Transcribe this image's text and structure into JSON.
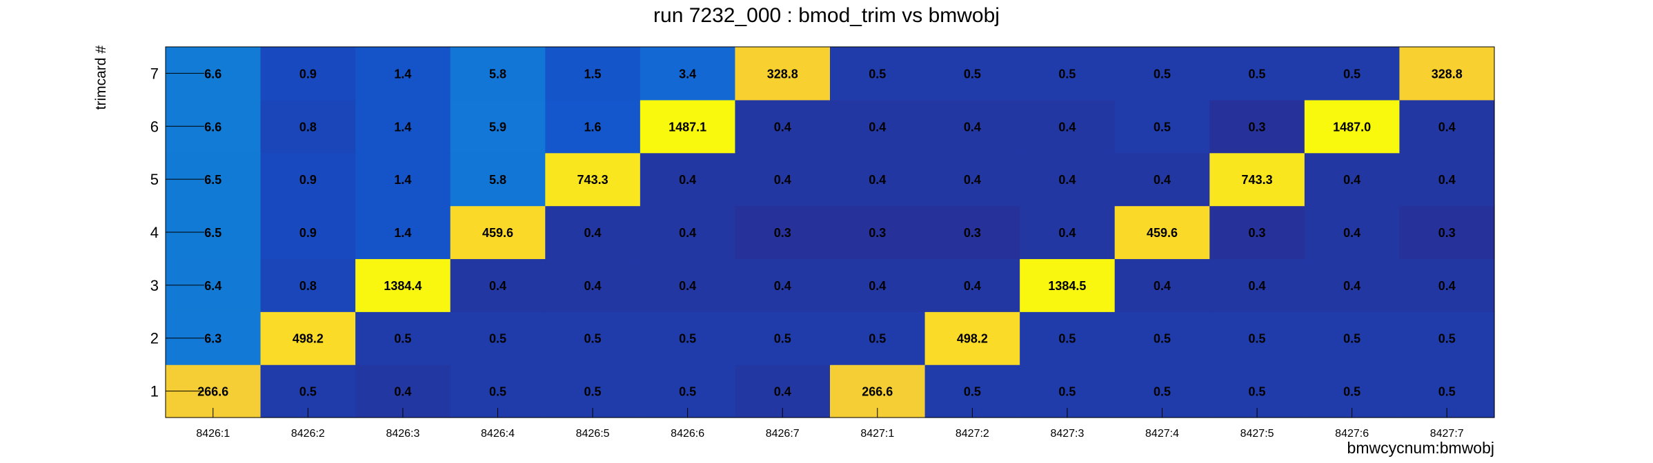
{
  "chart_data": {
    "type": "heatmap",
    "title": "run 7232_000 : bmod_trim vs bmwobj",
    "xlabel": "bmwcycnum:bmwobj",
    "ylabel": "trimcard #",
    "x_categories": [
      "8426:1",
      "8426:2",
      "8426:3",
      "8426:4",
      "8426:5",
      "8426:6",
      "8426:7",
      "8427:1",
      "8427:2",
      "8427:3",
      "8427:4",
      "8427:5",
      "8427:6",
      "8427:7"
    ],
    "y_categories": [
      "1",
      "2",
      "3",
      "4",
      "5",
      "6",
      "7"
    ],
    "values": [
      [
        266.6,
        0.5,
        0.4,
        0.5,
        0.5,
        0.5,
        0.4,
        266.6,
        0.5,
        0.5,
        0.5,
        0.5,
        0.5,
        0.5
      ],
      [
        6.3,
        498.2,
        0.5,
        0.5,
        0.5,
        0.5,
        0.5,
        0.5,
        498.2,
        0.5,
        0.5,
        0.5,
        0.5,
        0.5
      ],
      [
        6.4,
        0.8,
        1384.4,
        0.4,
        0.4,
        0.4,
        0.4,
        0.4,
        0.4,
        1384.5,
        0.4,
        0.4,
        0.4,
        0.4
      ],
      [
        6.5,
        0.9,
        1.4,
        459.6,
        0.4,
        0.4,
        0.3,
        0.3,
        0.3,
        0.4,
        459.6,
        0.3,
        0.4,
        0.3
      ],
      [
        6.5,
        0.9,
        1.4,
        5.8,
        743.3,
        0.4,
        0.4,
        0.4,
        0.4,
        0.4,
        0.4,
        743.3,
        0.4,
        0.4
      ],
      [
        6.6,
        0.8,
        1.4,
        5.9,
        1.6,
        1487.1,
        0.4,
        0.4,
        0.4,
        0.4,
        0.5,
        0.3,
        1487.0,
        0.4
      ],
      [
        6.6,
        0.9,
        1.4,
        5.8,
        1.5,
        3.4,
        328.8,
        0.5,
        0.5,
        0.5,
        0.5,
        0.5,
        0.5,
        328.8
      ]
    ],
    "color_scale": "log",
    "palette": [
      "#26319a",
      "#1550c8",
      "#1272d8",
      "#0fa2c8",
      "#e2c04e",
      "#fad22e",
      "#f9f90e"
    ],
    "grid": false,
    "legend": "none"
  }
}
